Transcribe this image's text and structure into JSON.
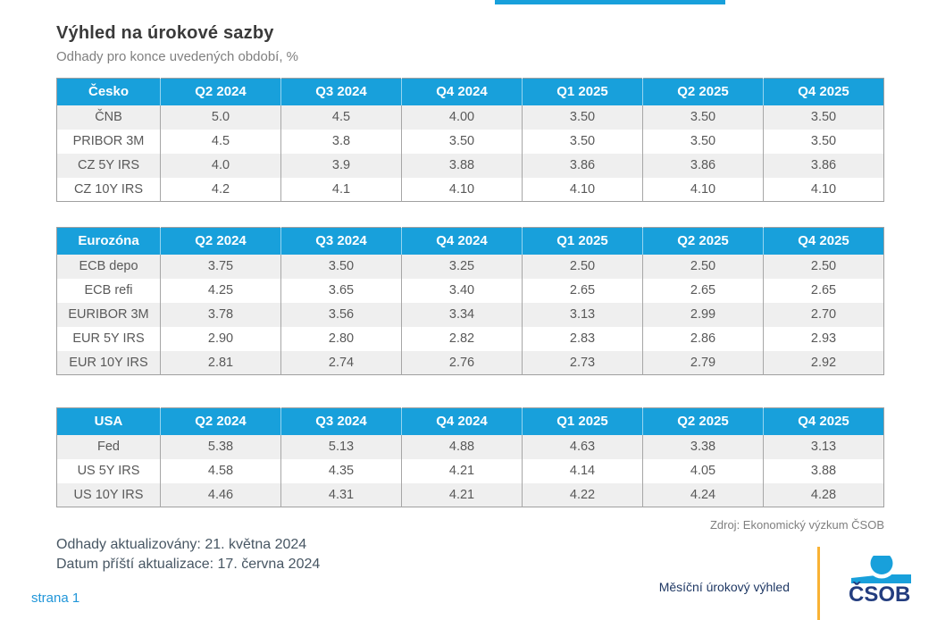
{
  "page": {
    "title": "Výhled na úrokové sazby",
    "subtitle": "Odhady pro konce uvedených období, %",
    "source": "Zdroj: Ekonomický výzkum ČSOB"
  },
  "columns": [
    "Q2 2024",
    "Q3 2024",
    "Q4 2024",
    "Q1 2025",
    "Q2 2025",
    "Q4 2025"
  ],
  "tables": [
    {
      "id": "cesko",
      "region": "Česko",
      "rows": [
        {
          "label": "ČNB",
          "values": [
            "5.0",
            "4.5",
            "4.00",
            "3.50",
            "3.50",
            "3.50"
          ]
        },
        {
          "label": "PRIBOR 3M",
          "values": [
            "4.5",
            "3.8",
            "3.50",
            "3.50",
            "3.50",
            "3.50"
          ]
        },
        {
          "label": "CZ 5Y IRS",
          "values": [
            "4.0",
            "3.9",
            "3.88",
            "3.86",
            "3.86",
            "3.86"
          ]
        },
        {
          "label": "CZ 10Y IRS",
          "values": [
            "4.2",
            "4.1",
            "4.10",
            "4.10",
            "4.10",
            "4.10"
          ]
        }
      ]
    },
    {
      "id": "eurozona",
      "region": "Eurozóna",
      "rows": [
        {
          "label": "ECB depo",
          "values": [
            "3.75",
            "3.50",
            "3.25",
            "2.50",
            "2.50",
            "2.50"
          ]
        },
        {
          "label": "ECB refi",
          "values": [
            "4.25",
            "3.65",
            "3.40",
            "2.65",
            "2.65",
            "2.65"
          ]
        },
        {
          "label": "EURIBOR 3M",
          "values": [
            "3.78",
            "3.56",
            "3.34",
            "3.13",
            "2.99",
            "2.70"
          ]
        },
        {
          "label": "EUR 5Y IRS",
          "values": [
            "2.90",
            "2.80",
            "2.82",
            "2.83",
            "2.86",
            "2.93"
          ]
        },
        {
          "label": "EUR 10Y IRS",
          "values": [
            "2.81",
            "2.74",
            "2.76",
            "2.73",
            "2.79",
            "2.92"
          ]
        }
      ]
    },
    {
      "id": "usa",
      "region": "USA",
      "rows": [
        {
          "label": "Fed",
          "values": [
            "5.38",
            "5.13",
            "4.88",
            "4.63",
            "3.38",
            "3.13"
          ]
        },
        {
          "label": "US 5Y IRS",
          "values": [
            "4.58",
            "4.35",
            "4.21",
            "4.14",
            "4.05",
            "3.88"
          ]
        },
        {
          "label": "US 10Y IRS",
          "values": [
            "4.46",
            "4.31",
            "4.21",
            "4.22",
            "4.24",
            "4.28"
          ]
        }
      ]
    }
  ],
  "footer": {
    "updated": "Odhady aktualizovány: 21. května 2024",
    "next_update": "Datum příští aktualizace: 17. června 2024",
    "page_label": "strana 1",
    "doc_name": "Měsíční úrokový výhled",
    "logo_text": "ČSOB"
  },
  "colors": {
    "accent_blue": "#18a0db",
    "navy": "#1f3864",
    "logo_navy": "#233d7f",
    "yellow": "#f9b234",
    "row_gray": "#efefef",
    "border_gray": "#a6a6a6"
  }
}
